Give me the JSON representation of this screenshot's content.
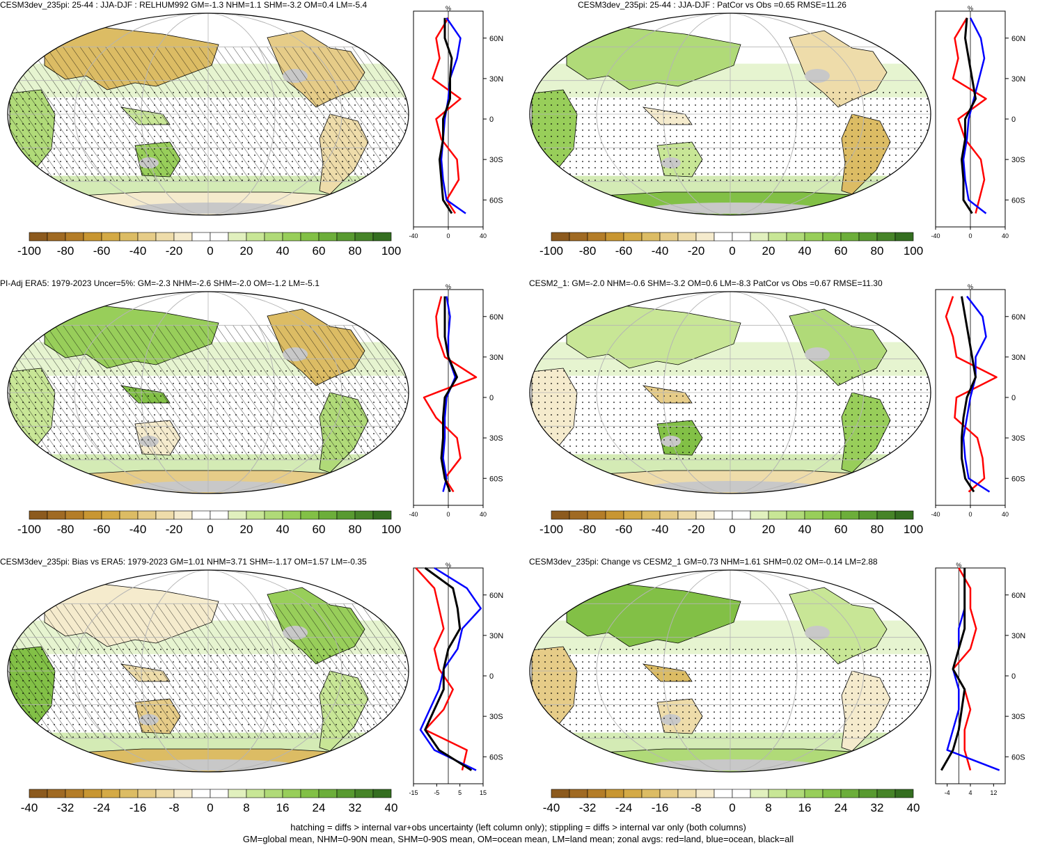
{
  "colors": {
    "land_gray": "#c8c8c8",
    "ocean_white": "#ffffff",
    "grid": "#b4b4b4",
    "zonal_land": "#ff0000",
    "zonal_ocean": "#0000ff",
    "zonal_all": "#000000"
  },
  "colorbar_palette": [
    "#8c5a1e",
    "#a06a23",
    "#b47d28",
    "#c89632",
    "#d4aa46",
    "#dcbc64",
    "#e6cc88",
    "#eedcaa",
    "#f5ebcd",
    "#ffffff",
    "#ffffff",
    "#e1f0be",
    "#c8e696",
    "#b0da78",
    "#98ce5a",
    "#82c046",
    "#6cae3a",
    "#589a30",
    "#468428",
    "#346e20"
  ],
  "lat_ticks": [
    "60N",
    "30N",
    "0",
    "30S",
    "60S"
  ],
  "lat_values": [
    60,
    30,
    0,
    -30,
    -60
  ],
  "unit": "%",
  "panels": [
    {
      "title": "CESM3dev_235pi: 25-44 : JJA-DJF : RELHUM992 GM=-1.3 NHM=1.1 SHM=-3.2 OM=0.4 LM=-5.4",
      "hatched": true,
      "colorbar_labels": [
        "-100",
        "-80",
        "-60",
        "-40",
        "-20",
        "0",
        "20",
        "40",
        "60",
        "80",
        "100"
      ],
      "zonal_xticks": [
        "-40",
        "0",
        "40"
      ],
      "zonal_xlim": [
        -40,
        40
      ]
    },
    {
      "title": "CESM3dev_235pi: 25-44 : JJA-DJF : PatCor vs Obs =0.65 RMSE=11.26",
      "hatched": false,
      "colorbar_labels": [
        "-100",
        "-80",
        "-60",
        "-40",
        "-20",
        "0",
        "20",
        "40",
        "60",
        "80",
        "100"
      ],
      "zonal_xticks": [
        "-40",
        "0",
        "40"
      ],
      "zonal_xlim": [
        -40,
        40
      ]
    },
    {
      "title": "PI-Adj ERA5: 1979-2023 Uncer=5%: GM=-2.3 NHM=-2.6 SHM=-2.0 OM=-1.2 LM=-5.1",
      "hatched": true,
      "colorbar_labels": [
        "-100",
        "-80",
        "-60",
        "-40",
        "-20",
        "0",
        "20",
        "40",
        "60",
        "80",
        "100"
      ],
      "zonal_xticks": [
        "-40",
        "0",
        "40"
      ],
      "zonal_xlim": [
        -40,
        40
      ]
    },
    {
      "title": "CESM2_1: GM=-2.0 NHM=-0.6 SHM=-3.2 OM=0.6 LM=-8.3 PatCor vs Obs =0.67 RMSE=11.30",
      "hatched": false,
      "colorbar_labels": [
        "-100",
        "-80",
        "-60",
        "-40",
        "-20",
        "0",
        "20",
        "40",
        "60",
        "80",
        "100"
      ],
      "zonal_xticks": [
        "-40",
        "0",
        "40"
      ],
      "zonal_xlim": [
        -40,
        40
      ]
    },
    {
      "title": "CESM3dev_235pi: Bias vs ERA5: 1979-2023 GM=1.01 NHM=3.71 SHM=-1.17 OM=1.57 LM=-0.35",
      "hatched": true,
      "colorbar_labels": [
        "-40",
        "-32",
        "-24",
        "-16",
        "-8",
        "0",
        "8",
        "16",
        "24",
        "32",
        "40"
      ],
      "zonal_xticks": [
        "-15",
        "-5",
        "5",
        "15"
      ],
      "zonal_xlim": [
        -15,
        15
      ]
    },
    {
      "title": "CESM3dev_235pi: Change vs CESM2_1 GM=0.73 NHM=1.61 SHM=0.02 OM=-0.14 LM=2.88",
      "hatched": false,
      "colorbar_labels": [
        "-40",
        "-32",
        "-24",
        "-16",
        "-8",
        "0",
        "8",
        "16",
        "24",
        "32",
        "40"
      ],
      "zonal_xticks": [
        "-4",
        "4",
        "12"
      ],
      "zonal_xlim": [
        -8,
        16
      ]
    }
  ],
  "footer": {
    "line1": "hatching = diffs > internal var+obs uncertainty (left column only); stippling = diffs > internal var only (both columns)",
    "line2": "GM=global mean, NHM=0-90N mean, SHM=0-90S mean, OM=ocean mean, LM=land mean; zonal avgs: red=land, blue=ocean, black=all"
  },
  "chart_data": [
    {
      "type": "heatmap",
      "panel": 1,
      "title": "CESM3dev_235pi: 25-44 : JJA-DJF : RELHUM992 GM=-1.3 NHM=1.1 SHM=-3.2 OM=0.4 LM=-5.4",
      "zonal": {
        "lat": [
          75,
          60,
          45,
          30,
          15,
          0,
          -15,
          -30,
          -45,
          -60,
          -70
        ],
        "land": [
          0,
          -14,
          -10,
          -18,
          14,
          -14,
          -8,
          10,
          12,
          -2,
          8
        ],
        "ocean": [
          -2,
          14,
          10,
          2,
          0,
          -4,
          -6,
          -8,
          -6,
          -2,
          20
        ],
        "all": [
          -4,
          -4,
          4,
          2,
          2,
          -6,
          -6,
          -10,
          -8,
          -6,
          4
        ]
      }
    },
    {
      "type": "heatmap",
      "panel": 2,
      "title": "CESM3dev_235pi: 25-44 : JJA-DJF : PatCor vs Obs =0.65 RMSE=11.26",
      "zonal": {
        "lat": [
          75,
          60,
          45,
          30,
          15,
          0,
          -15,
          -30,
          -45,
          -60,
          -70
        ],
        "land": [
          -4,
          -18,
          -14,
          -20,
          18,
          -14,
          -6,
          12,
          16,
          10,
          6
        ],
        "ocean": [
          0,
          12,
          16,
          10,
          4,
          -2,
          -4,
          -8,
          -6,
          -2,
          18
        ],
        "all": [
          -4,
          -6,
          -2,
          2,
          6,
          -6,
          -6,
          -10,
          -8,
          -8,
          2
        ]
      }
    },
    {
      "type": "heatmap",
      "panel": 3,
      "title": "PI-Adj ERA5: 1979-2023 Uncer=5%: GM=-2.3 NHM=-2.6 SHM=-2.0 OM=-1.2 LM=-5.1",
      "zonal": {
        "lat": [
          75,
          60,
          45,
          30,
          15,
          0,
          -15,
          -30,
          -45,
          -60,
          -70
        ],
        "land": [
          -8,
          -14,
          -12,
          -4,
          32,
          -28,
          -14,
          10,
          14,
          -4,
          6
        ],
        "ocean": [
          -2,
          2,
          0,
          0,
          8,
          -2,
          -4,
          -4,
          -6,
          -2,
          -6
        ],
        "all": [
          -4,
          -4,
          -4,
          0,
          10,
          -4,
          -6,
          -6,
          -8,
          -4,
          2
        ]
      }
    },
    {
      "type": "heatmap",
      "panel": 4,
      "title": "CESM2_1: GM=-2.0 NHM=-0.6 SHM=-3.2 OM=0.6 LM=-8.3 PatCor vs Obs =0.67 RMSE=11.30",
      "zonal": {
        "lat": [
          75,
          60,
          45,
          30,
          15,
          0,
          -15,
          -30,
          -45,
          -60,
          -70
        ],
        "land": [
          -20,
          -28,
          -20,
          -16,
          30,
          -16,
          -18,
          8,
          14,
          16,
          -2
        ],
        "ocean": [
          -4,
          14,
          18,
          6,
          6,
          0,
          -4,
          -8,
          -6,
          -2,
          22
        ],
        "all": [
          -10,
          -6,
          -2,
          2,
          6,
          -4,
          -8,
          -10,
          -10,
          -6,
          4
        ]
      }
    },
    {
      "type": "heatmap",
      "panel": 5,
      "title": "CESM3dev_235pi: Bias vs ERA5: 1979-2023 GM=1.01 NHM=3.71 SHM=-1.17 OM=1.57 LM=-0.35",
      "zonal": {
        "lat": [
          80,
          65,
          50,
          35,
          20,
          5,
          -10,
          -25,
          -40,
          -55,
          -70
        ],
        "land": [
          -14,
          -6,
          -4,
          -2,
          -6,
          -4,
          2,
          -2,
          -10,
          8,
          6
        ],
        "ocean": [
          -6,
          8,
          14,
          6,
          4,
          -2,
          -4,
          -8,
          -12,
          -6,
          12
        ],
        "all": [
          -10,
          2,
          4,
          5,
          0,
          -2,
          -2,
          -6,
          -10,
          -4,
          10
        ]
      }
    },
    {
      "type": "heatmap",
      "panel": 6,
      "title": "CESM3dev_235pi: Change vs CESM2_1 GM=0.73 NHM=1.61 SHM=0.02 OM=-0.14 LM=2.88",
      "zonal": {
        "lat": [
          80,
          65,
          50,
          35,
          20,
          5,
          -10,
          -25,
          -40,
          -55,
          -70
        ],
        "land": [
          0,
          4,
          4,
          6,
          4,
          -2,
          2,
          4,
          2,
          2,
          4
        ],
        "ocean": [
          2,
          2,
          2,
          0,
          0,
          -2,
          0,
          0,
          -2,
          -4,
          14
        ],
        "all": [
          2,
          2,
          2,
          2,
          0,
          -2,
          2,
          1,
          0,
          -2,
          -6
        ]
      }
    }
  ]
}
